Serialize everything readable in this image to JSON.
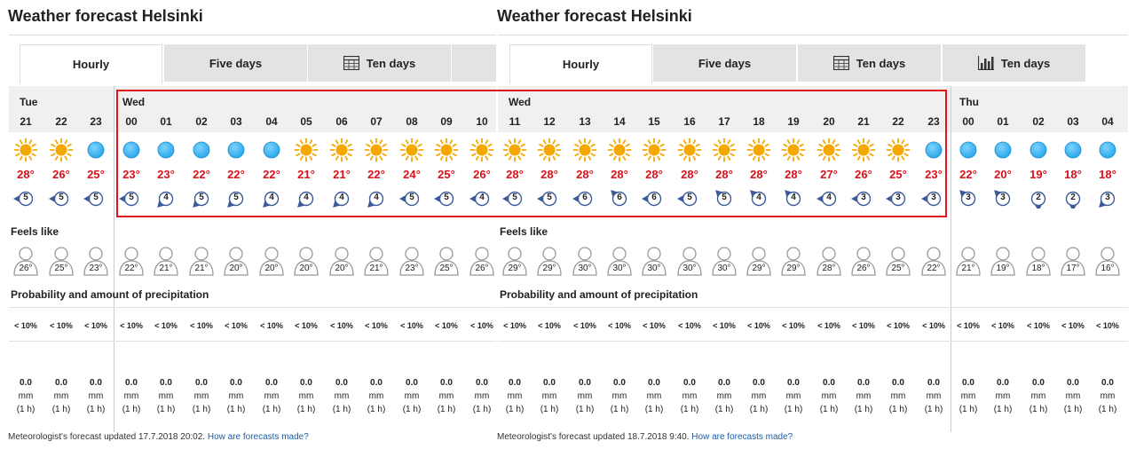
{
  "colors": {
    "temp": "#d8101a",
    "sun": "#f5a800",
    "moon": "#2aa8ea",
    "wind": "#3a5a9a",
    "highlight": "#e0141e",
    "link": "#1a5da8"
  },
  "left": {
    "title": "Weather forecast Helsinki",
    "tabs": [
      "Hourly",
      "Five days",
      "Ten days",
      ""
    ],
    "days": [
      {
        "label": "Tue",
        "start": 0
      },
      {
        "label": "Wed",
        "start": 3
      }
    ],
    "hours": [
      {
        "h": "21",
        "sym": "sun",
        "t": "28°",
        "w": "5",
        "dir": "left",
        "f": "26°",
        "p": "< 10%",
        "a": "0.0"
      },
      {
        "h": "22",
        "sym": "sun",
        "t": "26°",
        "w": "5",
        "dir": "left",
        "f": "25°",
        "p": "< 10%",
        "a": "0.0"
      },
      {
        "h": "23",
        "sym": "moon",
        "t": "25°",
        "w": "5",
        "dir": "left",
        "f": "23°",
        "p": "< 10%",
        "a": "0.0"
      },
      {
        "h": "00",
        "sym": "moon",
        "t": "23°",
        "w": "5",
        "dir": "left",
        "f": "22°",
        "p": "< 10%",
        "a": "0.0"
      },
      {
        "h": "01",
        "sym": "moon",
        "t": "23°",
        "w": "4",
        "dir": "downleft",
        "f": "21°",
        "p": "< 10%",
        "a": "0.0"
      },
      {
        "h": "02",
        "sym": "moon",
        "t": "22°",
        "w": "5",
        "dir": "downleft",
        "f": "21°",
        "p": "< 10%",
        "a": "0.0"
      },
      {
        "h": "03",
        "sym": "moon",
        "t": "22°",
        "w": "5",
        "dir": "downleft",
        "f": "20°",
        "p": "< 10%",
        "a": "0.0"
      },
      {
        "h": "04",
        "sym": "moon",
        "t": "22°",
        "w": "4",
        "dir": "downleft",
        "f": "20°",
        "p": "< 10%",
        "a": "0.0"
      },
      {
        "h": "05",
        "sym": "sun",
        "t": "21°",
        "w": "4",
        "dir": "downleft",
        "f": "20°",
        "p": "< 10%",
        "a": "0.0"
      },
      {
        "h": "06",
        "sym": "sun",
        "t": "21°",
        "w": "4",
        "dir": "downleft",
        "f": "20°",
        "p": "< 10%",
        "a": "0.0"
      },
      {
        "h": "07",
        "sym": "sun",
        "t": "22°",
        "w": "4",
        "dir": "downleft",
        "f": "21°",
        "p": "< 10%",
        "a": "0.0"
      },
      {
        "h": "08",
        "sym": "sun",
        "t": "24°",
        "w": "5",
        "dir": "left",
        "f": "23°",
        "p": "< 10%",
        "a": "0.0"
      },
      {
        "h": "09",
        "sym": "sun",
        "t": "25°",
        "w": "5",
        "dir": "left",
        "f": "25°",
        "p": "< 10%",
        "a": "0.0"
      },
      {
        "h": "10",
        "sym": "sun",
        "t": "26°",
        "w": "4",
        "dir": "left",
        "f": "26°",
        "p": "< 10%",
        "a": "0.0"
      }
    ],
    "feels_label": "Feels like",
    "precip_label": "Probability and amount of precipitation",
    "unit": "mm",
    "period": "(1 h)",
    "updated_text": "Meteorologist's forecast updated 17.7.2018 20:02.",
    "link_text": "How are forecasts made?"
  },
  "right": {
    "title": "Weather forecast Helsinki",
    "tabs": [
      "Hourly",
      "Five days",
      "Ten days",
      "Ten days"
    ],
    "days": [
      {
        "label": "Wed",
        "start": 0
      },
      {
        "label": "Thu",
        "start": 13
      }
    ],
    "hours": [
      {
        "h": "11",
        "sym": "sun",
        "t": "28°",
        "w": "5",
        "dir": "left",
        "f": "29°",
        "p": "< 10%",
        "a": "0.0"
      },
      {
        "h": "12",
        "sym": "sun",
        "t": "28°",
        "w": "5",
        "dir": "left",
        "f": "29°",
        "p": "< 10%",
        "a": "0.0"
      },
      {
        "h": "13",
        "sym": "sun",
        "t": "28°",
        "w": "6",
        "dir": "left",
        "f": "30°",
        "p": "< 10%",
        "a": "0.0"
      },
      {
        "h": "14",
        "sym": "sun",
        "t": "28°",
        "w": "6",
        "dir": "upleft",
        "f": "30°",
        "p": "< 10%",
        "a": "0.0"
      },
      {
        "h": "15",
        "sym": "sun",
        "t": "28°",
        "w": "6",
        "dir": "left",
        "f": "30°",
        "p": "< 10%",
        "a": "0.0"
      },
      {
        "h": "16",
        "sym": "sun",
        "t": "28°",
        "w": "5",
        "dir": "left",
        "f": "30°",
        "p": "< 10%",
        "a": "0.0"
      },
      {
        "h": "17",
        "sym": "sun",
        "t": "28°",
        "w": "5",
        "dir": "upleft",
        "f": "30°",
        "p": "< 10%",
        "a": "0.0"
      },
      {
        "h": "18",
        "sym": "sun",
        "t": "28°",
        "w": "4",
        "dir": "upleft",
        "f": "29°",
        "p": "< 10%",
        "a": "0.0"
      },
      {
        "h": "19",
        "sym": "sun",
        "t": "28°",
        "w": "4",
        "dir": "upleft",
        "f": "29°",
        "p": "< 10%",
        "a": "0.0"
      },
      {
        "h": "20",
        "sym": "sun",
        "t": "27°",
        "w": "4",
        "dir": "left",
        "f": "28°",
        "p": "< 10%",
        "a": "0.0"
      },
      {
        "h": "21",
        "sym": "sun",
        "t": "26°",
        "w": "3",
        "dir": "left",
        "f": "26°",
        "p": "< 10%",
        "a": "0.0"
      },
      {
        "h": "22",
        "sym": "sun",
        "t": "25°",
        "w": "3",
        "dir": "left",
        "f": "25°",
        "p": "< 10%",
        "a": "0.0"
      },
      {
        "h": "23",
        "sym": "moon",
        "t": "23°",
        "w": "3",
        "dir": "left",
        "f": "22°",
        "p": "< 10%",
        "a": "0.0"
      },
      {
        "h": "00",
        "sym": "moon",
        "t": "22°",
        "w": "3",
        "dir": "upleft",
        "f": "21°",
        "p": "< 10%",
        "a": "0.0"
      },
      {
        "h": "01",
        "sym": "moon",
        "t": "20°",
        "w": "3",
        "dir": "upleft",
        "f": "19°",
        "p": "< 10%",
        "a": "0.0"
      },
      {
        "h": "02",
        "sym": "moon",
        "t": "19°",
        "w": "2",
        "dir": "down",
        "f": "18°",
        "p": "< 10%",
        "a": "0.0"
      },
      {
        "h": "03",
        "sym": "moon",
        "t": "18°",
        "w": "2",
        "dir": "down",
        "f": "17°",
        "p": "< 10%",
        "a": "0.0"
      },
      {
        "h": "04",
        "sym": "moon",
        "t": "18°",
        "w": "3",
        "dir": "downleft",
        "f": "16°",
        "p": "< 10%",
        "a": "0.0"
      }
    ],
    "feels_label": "Feels like",
    "precip_label": "Probability and amount of precipitation",
    "unit": "mm",
    "period": "(1 h)",
    "updated_text": "Meteorologist's forecast updated 18.7.2018 9:40.",
    "link_text": "How are forecasts made?"
  }
}
